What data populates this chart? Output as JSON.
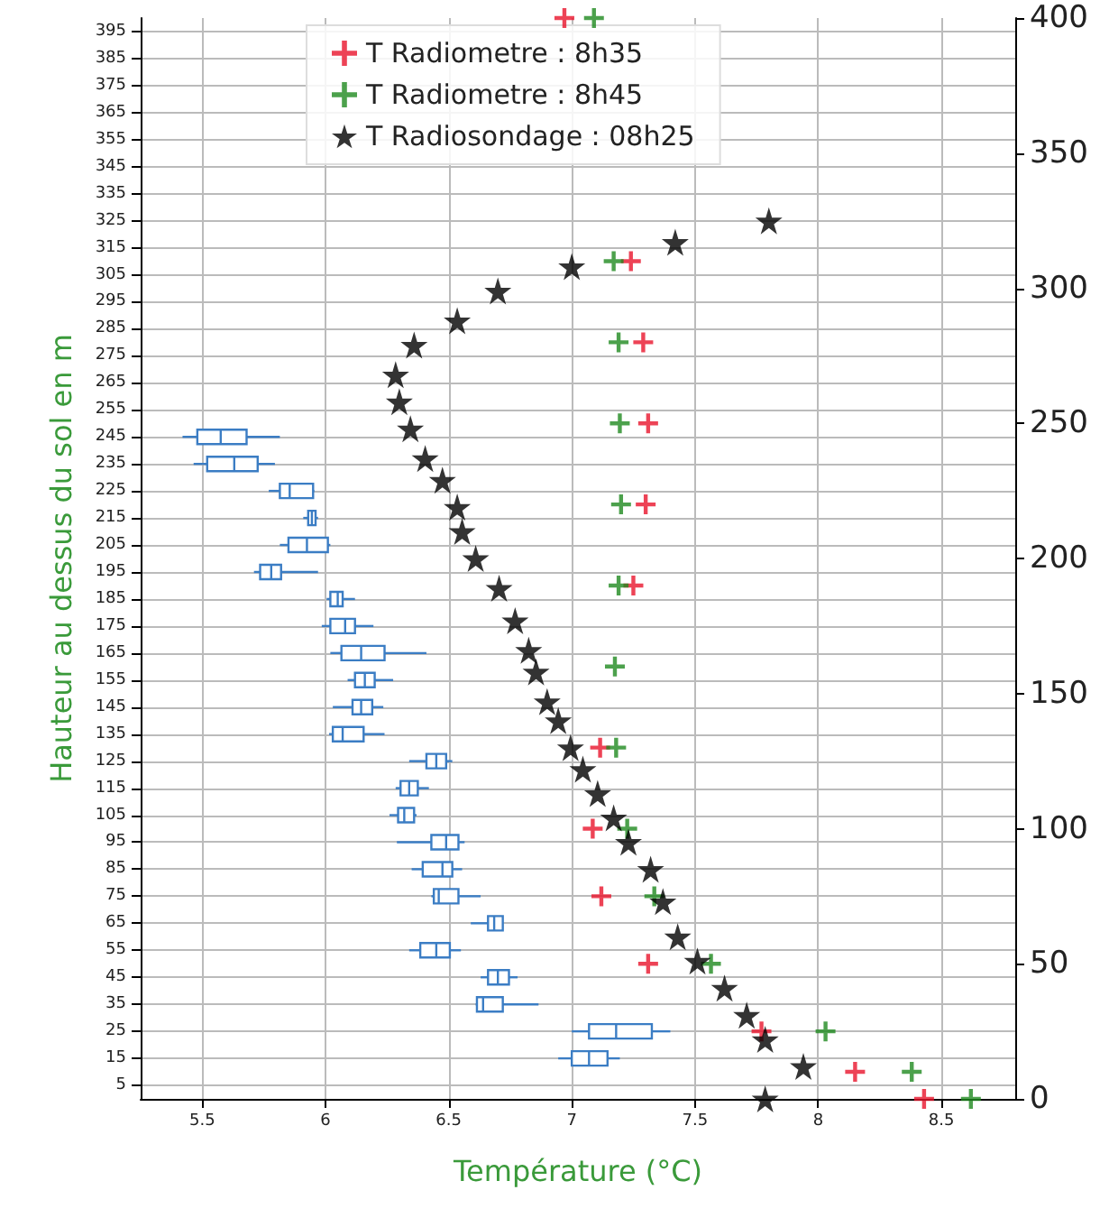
{
  "chart_data": {
    "type": "box",
    "orientation": "horizontal",
    "xlabel": "Température (°C)",
    "ylabel": "Hauteur au dessus du sol en m",
    "xlim": [
      5.25,
      8.8
    ],
    "xticks": [
      5.5,
      6.0,
      6.5,
      7.0,
      7.5,
      8.0,
      8.5
    ],
    "ylim": [
      0,
      400
    ],
    "yticks": [
      5,
      15,
      25,
      35,
      45,
      55,
      65,
      75,
      85,
      95,
      105,
      115,
      125,
      135,
      145,
      155,
      165,
      175,
      185,
      195,
      205,
      215,
      225,
      235,
      245,
      255,
      265,
      275,
      285,
      295,
      305,
      315,
      325,
      335,
      345,
      355,
      365,
      375,
      385,
      395
    ],
    "y2lim": [
      0,
      400
    ],
    "y2ticks": [
      0,
      50,
      100,
      150,
      200,
      250,
      300,
      350,
      400
    ],
    "grid": true,
    "legend": "top",
    "series": [
      {
        "color": "#3b7dc4",
        "x": [
          245,
          235,
          225,
          215,
          205,
          195,
          185,
          175,
          165,
          155,
          145,
          135,
          125,
          115,
          105,
          95,
          85,
          75,
          65,
          55,
          45,
          35,
          25,
          15
        ],
        "boxes": [
          {
            "low": 5.42,
            "q1": 5.48,
            "median": 5.575,
            "q3": 5.68,
            "high": 5.815
          },
          {
            "low": 5.465,
            "q1": 5.52,
            "median": 5.63,
            "q3": 5.725,
            "high": 5.795
          },
          {
            "low": 5.77,
            "q1": 5.815,
            "median": 5.855,
            "q3": 5.95,
            "high": 5.955
          },
          {
            "low": 5.91,
            "q1": 5.93,
            "median": 5.945,
            "q3": 5.96,
            "high": 5.97
          },
          {
            "low": 5.815,
            "q1": 5.85,
            "median": 5.925,
            "q3": 6.01,
            "high": 6.02
          },
          {
            "low": 5.71,
            "q1": 5.735,
            "median": 5.78,
            "q3": 5.82,
            "high": 5.97
          },
          {
            "low": 6.005,
            "q1": 6.02,
            "median": 6.05,
            "q3": 6.07,
            "high": 6.12
          },
          {
            "low": 5.985,
            "q1": 6.02,
            "median": 6.08,
            "q3": 6.12,
            "high": 6.195
          },
          {
            "low": 6.02,
            "q1": 6.065,
            "median": 6.145,
            "q3": 6.24,
            "high": 6.41
          },
          {
            "low": 6.09,
            "q1": 6.12,
            "median": 6.16,
            "q3": 6.2,
            "high": 6.275
          },
          {
            "low": 6.03,
            "q1": 6.11,
            "median": 6.145,
            "q3": 6.19,
            "high": 6.235
          },
          {
            "low": 6.015,
            "q1": 6.03,
            "median": 6.07,
            "q3": 6.155,
            "high": 6.24
          },
          {
            "low": 6.34,
            "q1": 6.41,
            "median": 6.45,
            "q3": 6.49,
            "high": 6.515
          },
          {
            "low": 6.285,
            "q1": 6.305,
            "median": 6.34,
            "q3": 6.375,
            "high": 6.42
          },
          {
            "low": 6.26,
            "q1": 6.295,
            "median": 6.32,
            "q3": 6.36,
            "high": 6.37
          },
          {
            "low": 6.29,
            "q1": 6.43,
            "median": 6.49,
            "q3": 6.54,
            "high": 6.565
          },
          {
            "low": 6.35,
            "q1": 6.395,
            "median": 6.475,
            "q3": 6.515,
            "high": 6.555
          },
          {
            "low": 6.43,
            "q1": 6.44,
            "median": 6.46,
            "q3": 6.54,
            "high": 6.63
          },
          {
            "low": 6.59,
            "q1": 6.66,
            "median": 6.685,
            "q3": 6.72,
            "high": 6.72
          },
          {
            "low": 6.34,
            "q1": 6.385,
            "median": 6.45,
            "q3": 6.505,
            "high": 6.55
          },
          {
            "low": 6.63,
            "q1": 6.66,
            "median": 6.7,
            "q3": 6.745,
            "high": 6.78
          },
          {
            "low": 6.61,
            "q1": 6.615,
            "median": 6.64,
            "q3": 6.72,
            "high": 6.865
          },
          {
            "low": 7.0,
            "q1": 7.07,
            "median": 7.18,
            "q3": 7.325,
            "high": 7.4
          },
          {
            "low": 6.945,
            "q1": 7.0,
            "median": 7.07,
            "q3": 7.145,
            "high": 7.195
          }
        ]
      },
      {
        "type": "scatter",
        "name": "T Radiometre : 8h35",
        "color": "#e8142c",
        "marker": "cross",
        "x": [
          400,
          310,
          280,
          250,
          220,
          190,
          130,
          100,
          75,
          50,
          25,
          10,
          0
        ],
        "values": [
          6.97,
          7.24,
          7.29,
          7.31,
          7.3,
          7.25,
          7.115,
          7.085,
          7.12,
          7.31,
          7.77,
          8.15,
          8.43
        ]
      },
      {
        "type": "scatter",
        "name": "T Radiometre : 8h45",
        "color": "#1f8a1f",
        "marker": "cross",
        "x": [
          400,
          310,
          280,
          250,
          220,
          190,
          160,
          130,
          100,
          75,
          50,
          25,
          10,
          0
        ],
        "values": [
          7.09,
          7.17,
          7.19,
          7.195,
          7.2,
          7.19,
          7.175,
          7.18,
          7.225,
          7.335,
          7.565,
          8.03,
          8.38,
          8.62
        ]
      },
      {
        "type": "scatter",
        "name": "T Radiosondage : 08h25",
        "color": "#000000",
        "marker": "star",
        "x": [
          325,
          317,
          308,
          299,
          288,
          279,
          268,
          258,
          248,
          237,
          229,
          219,
          210,
          200,
          189,
          177,
          166,
          158,
          147,
          140,
          130,
          122,
          113,
          104,
          95,
          85,
          73,
          60,
          51,
          41,
          31,
          22,
          12,
          0
        ],
        "values": [
          7.8,
          7.42,
          7.0,
          6.7,
          6.535,
          6.36,
          6.285,
          6.3,
          6.345,
          6.405,
          6.475,
          6.535,
          6.555,
          6.61,
          6.705,
          6.77,
          6.825,
          6.855,
          6.9,
          6.945,
          6.995,
          7.045,
          7.105,
          7.17,
          7.23,
          7.32,
          7.37,
          7.43,
          7.51,
          7.62,
          7.71,
          7.785,
          7.94,
          7.785
        ]
      }
    ]
  }
}
